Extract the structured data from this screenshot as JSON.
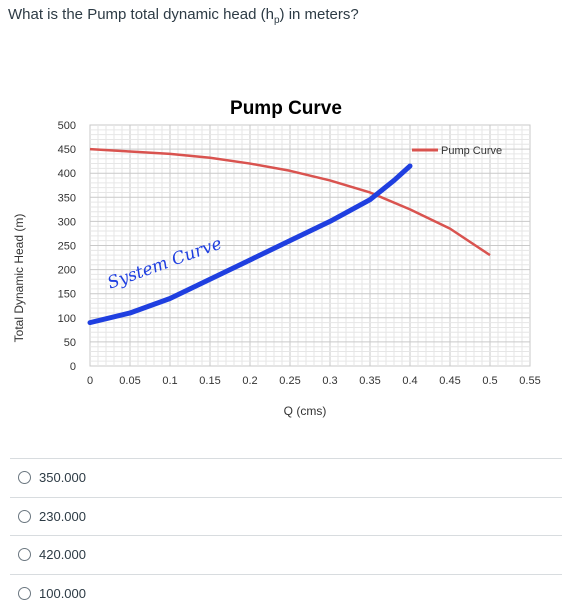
{
  "question": {
    "prefix": "What is the Pump total dynamic head (h",
    "sub": "p",
    "suffix": ") in meters?"
  },
  "chart_data": {
    "type": "line",
    "title": "Pump Curve",
    "xlabel": "Q (cms)",
    "ylabel": "Total Dynamic Head (m)",
    "xlim": [
      0,
      0.55
    ],
    "ylim": [
      0,
      500
    ],
    "x_ticks": [
      "0",
      "0.05",
      "0.1",
      "0.15",
      "0.2",
      "0.25",
      "0.3",
      "0.35",
      "0.4",
      "0.45",
      "0.5",
      "0.55"
    ],
    "y_ticks": [
      "0",
      "50",
      "100",
      "150",
      "200",
      "250",
      "300",
      "350",
      "400",
      "450",
      "500"
    ],
    "grid": true,
    "legend": "top-right",
    "series": [
      {
        "name": "Pump Curve",
        "color": "#d9534f",
        "x": [
          0,
          0.05,
          0.1,
          0.15,
          0.2,
          0.25,
          0.3,
          0.35,
          0.4,
          0.45,
          0.5
        ],
        "values": [
          450,
          445,
          440,
          432,
          420,
          405,
          385,
          360,
          325,
          285,
          230
        ]
      }
    ],
    "annotation": {
      "text": "System Curve",
      "color": "#1f3fe0",
      "x": [
        0,
        0.05,
        0.1,
        0.15,
        0.2,
        0.25,
        0.3,
        0.35,
        0.38,
        0.4
      ],
      "values": [
        90,
        110,
        140,
        180,
        220,
        260,
        300,
        345,
        385,
        415
      ]
    }
  },
  "answers": [
    {
      "label": "350.000"
    },
    {
      "label": "230.000"
    },
    {
      "label": "420.000"
    },
    {
      "label": "100.000"
    }
  ]
}
